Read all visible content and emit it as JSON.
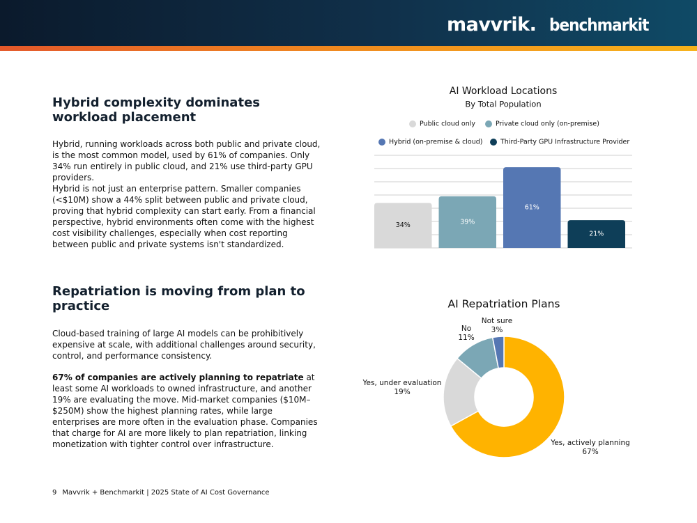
{
  "header": {
    "logos": [
      "mavvrik.",
      "benchmarkit"
    ]
  },
  "sections": [
    {
      "heading": "Hybrid complexity dominates workload placement",
      "paragraphs": [
        "Hybrid, running workloads across both public and private cloud, is the most common model, used by 61% of companies. Only 34% run entirely in public cloud, and 21% use third-party GPU providers.",
        "Hybrid is not just an enterprise pattern. Smaller companies (<$10M) show a 44% split between public and private cloud, proving that hybrid complexity can start early. From a financial perspective, hybrid environments often come with the highest cost visibility challenges, especially when cost reporting between public and private systems isn't standardized."
      ]
    },
    {
      "heading": "Repatriation is moving from plan to practice",
      "paragraphs": [
        "Cloud-based training of large AI models can be prohibitively expensive at scale, with additional challenges around security, control, and performance consistency.",
        {
          "bold": "67% of companies are actively planning to repatriate",
          "text": " at least some AI workloads to owned infrastructure, and another 19% are evaluating the move. Mid-market companies ($10M–$250M) show the highest planning rates, while large enterprises are more often in the evaluation phase. Companies that charge for AI are more likely to plan repatriation, linking monetization with tighter control over infrastructure."
        }
      ]
    }
  ],
  "chart_data": [
    {
      "type": "bar",
      "title": "AI Workload Locations",
      "subtitle": "By Total Population",
      "series": [
        {
          "name": "Public cloud only",
          "color": "#d9d9d9",
          "values": [
            34
          ],
          "value_labels": [
            "34%"
          ]
        },
        {
          "name": "Private cloud only (on-premise)",
          "color": "#7ba7b5",
          "values": [
            39
          ],
          "value_labels": [
            "39%"
          ]
        },
        {
          "name": "Hybrid (on-premise & cloud)",
          "color": "#5577b3",
          "values": [
            61
          ],
          "value_labels": [
            "61%"
          ]
        },
        {
          "name": "Third-Party GPU Infrastructure Provider",
          "color": "#0e3e58",
          "values": [
            21
          ],
          "value_labels": [
            "21%"
          ]
        }
      ],
      "ylim": [
        0,
        70
      ],
      "yticks": [
        0,
        10,
        20,
        30,
        40,
        50,
        60,
        70
      ],
      "grid": true
    },
    {
      "type": "donut",
      "title": "AI Repatriation Plans",
      "categories": [
        "Yes, actively planning",
        "Yes, under evaluation",
        "No",
        "Not sure"
      ],
      "values": [
        67,
        19,
        11,
        3
      ],
      "value_labels": [
        "67%",
        "19%",
        "11%",
        "3%"
      ],
      "colors": [
        "#ffb300",
        "#d9d9d9",
        "#7ba7b5",
        "#5577b3"
      ]
    }
  ],
  "footer": {
    "page": "9",
    "text": "Mavvrik + Benchmarkit | 2025 State of AI Cost Governance"
  }
}
